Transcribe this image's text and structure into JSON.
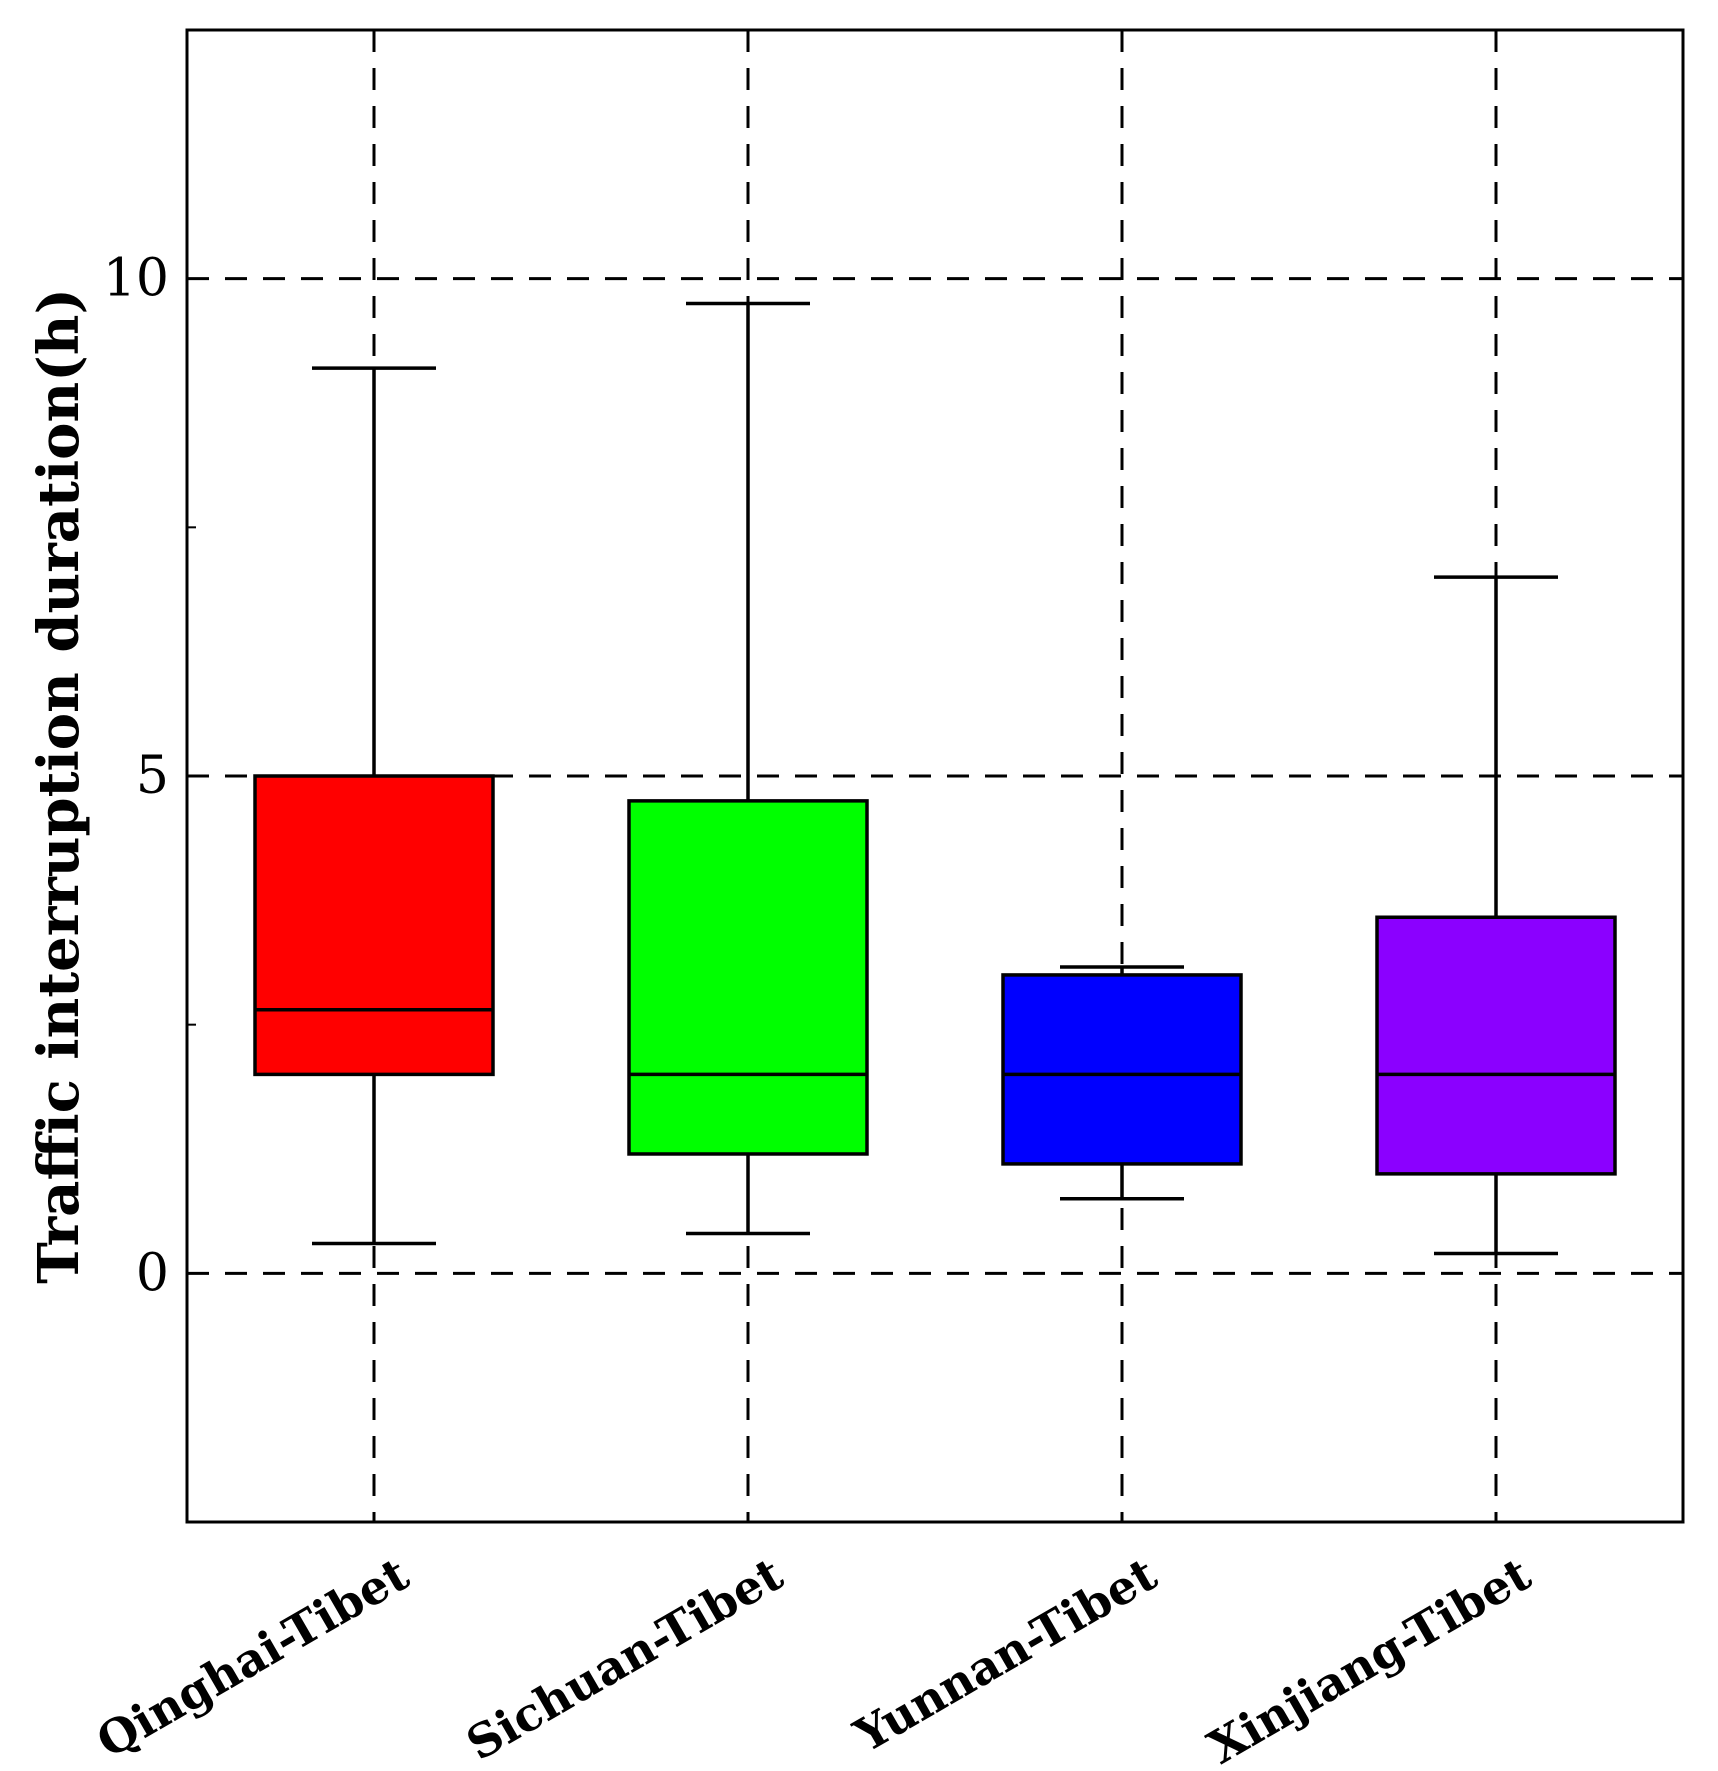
{
  "chart_data": {
    "type": "box",
    "ylabel": "Traffic interruption duration(h)",
    "xlabel": "",
    "ylim": [
      -2.5,
      12.5
    ],
    "yticks": [
      "0",
      "5",
      "10"
    ],
    "grid": true,
    "categories": [
      "Qinghai-Tibet",
      "Sichuan-Tibet",
      "Yunnan-Tibet",
      "Xinjiang-Tibet"
    ],
    "boxes": [
      {
        "category": "Qinghai-Tibet",
        "whisker_low": 0.3,
        "q1": 2.0,
        "median": 2.65,
        "q3": 5.0,
        "whisker_high": 9.1,
        "color": "#ff0000"
      },
      {
        "category": "Sichuan-Tibet",
        "whisker_low": 0.4,
        "q1": 1.2,
        "median": 2.0,
        "q3": 4.75,
        "whisker_high": 9.75,
        "color": "#00ff00"
      },
      {
        "category": "Yunnan-Tibet",
        "whisker_low": 0.75,
        "q1": 1.1,
        "median": 2.0,
        "q3": 3.0,
        "whisker_high": 3.08,
        "color": "#0000ff"
      },
      {
        "category": "Xinjiang-Tibet",
        "whisker_low": 0.2,
        "q1": 1.0,
        "median": 2.0,
        "q3": 3.58,
        "whisker_high": 7.0,
        "color": "#8b00ff"
      }
    ]
  }
}
